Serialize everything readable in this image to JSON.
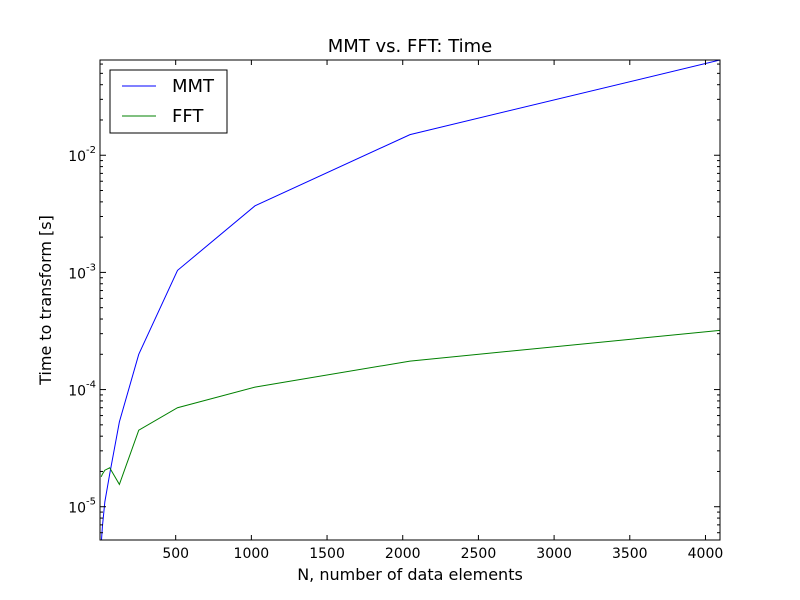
{
  "chart_data": {
    "type": "line",
    "title": "MMT vs. FFT: Time",
    "xlabel": "N, number of data elements",
    "ylabel": "Time to transform [s]",
    "xscale": "linear",
    "yscale": "log",
    "xlim": [
      0,
      4096
    ],
    "ylim": [
      5.2e-06,
      0.065
    ],
    "xticks": [
      500,
      1000,
      1500,
      2000,
      2500,
      3000,
      3500,
      4000
    ],
    "xtick_labels": [
      "500",
      "1000",
      "1500",
      "2000",
      "2500",
      "3000",
      "3500",
      "4000"
    ],
    "yticks": [
      {
        "value": 1e-05,
        "base": "10",
        "exp": "-5"
      },
      {
        "value": 0.0001,
        "base": "10",
        "exp": "-4"
      },
      {
        "value": 0.001,
        "base": "10",
        "exp": "-3"
      },
      {
        "value": 0.01,
        "base": "10",
        "exp": "-2"
      }
    ],
    "grid": false,
    "legend": "top-left",
    "series": [
      {
        "name": "MMT",
        "color": "#0000ff",
        "x": [
          8,
          16,
          32,
          64,
          128,
          256,
          512,
          1024,
          2048,
          4096
        ],
        "y": [
          4.8e-06,
          6.8e-06,
          1.1e-05,
          1.9e-05,
          5.3e-05,
          0.0002,
          0.00104,
          0.0037,
          0.015,
          0.065
        ]
      },
      {
        "name": "FFT",
        "color": "#008000",
        "x": [
          8,
          16,
          32,
          64,
          128,
          256,
          512,
          1024,
          2048,
          4096
        ],
        "y": [
          1.8e-05,
          1.9e-05,
          2.05e-05,
          2.15e-05,
          1.55e-05,
          4.5e-05,
          7e-05,
          0.000105,
          0.000175,
          0.00032
        ]
      }
    ]
  }
}
